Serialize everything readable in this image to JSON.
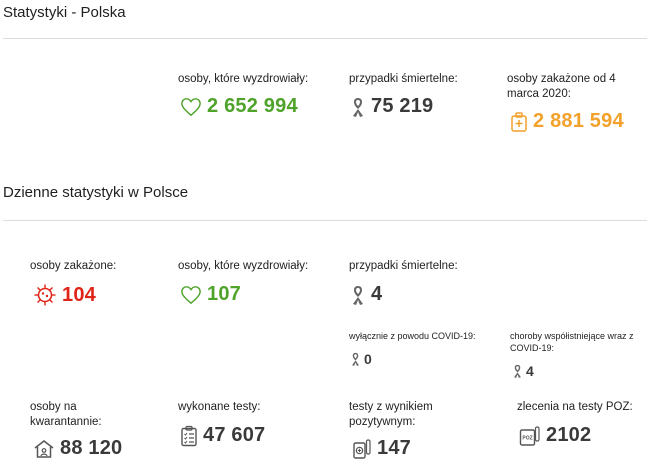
{
  "colors": {
    "green": "#4fa32a",
    "dark": "#3a3a3a",
    "orange": "#f2a12b",
    "red": "#e12418",
    "gray_icon": "#555555"
  },
  "poland": {
    "title": "Statystyki - Polska",
    "recovered": {
      "label": "osoby, które wyzdrowiały:",
      "value": "2 652 994",
      "icon": "heart-icon"
    },
    "deaths": {
      "label": "przypadki śmiertelne:",
      "value": "75 219",
      "icon": "ribbon-icon"
    },
    "infected": {
      "label": "osoby zakażone od 4 marca 2020:",
      "value": "2 881 594",
      "icon": "medical-kit-icon"
    }
  },
  "daily": {
    "title": "Dzienne statystyki w Polsce",
    "infected": {
      "label": "osoby zakażone:",
      "value": "104",
      "icon": "virus-icon"
    },
    "recovered": {
      "label": "osoby, które wyzdrowiały:",
      "value": "107",
      "icon": "heart-icon"
    },
    "deaths": {
      "label": "przypadki śmiertelne:",
      "value": "4",
      "icon": "ribbon-icon"
    },
    "covid_only": {
      "label": "wyłącznie z powodu COVID-19:",
      "value": "0",
      "icon": "ribbon-icon"
    },
    "comorbid": {
      "label": "choroby współistniejące wraz z COVID-19:",
      "value": "4",
      "icon": "ribbon-icon"
    },
    "quarantine": {
      "label": "osoby na kwarantannie:",
      "value": "88 120",
      "icon": "house-icon"
    },
    "tests": {
      "label": "wykonane testy:",
      "value": "47 607",
      "icon": "clipboard-icon"
    },
    "positive_tests": {
      "label": "testy z wynikiem pozytywnym:",
      "value": "147",
      "icon": "test-kit-icon"
    },
    "poz_orders": {
      "label": "zlecenia na testy POZ:",
      "value": "2102",
      "icon": "poz-icon"
    }
  }
}
